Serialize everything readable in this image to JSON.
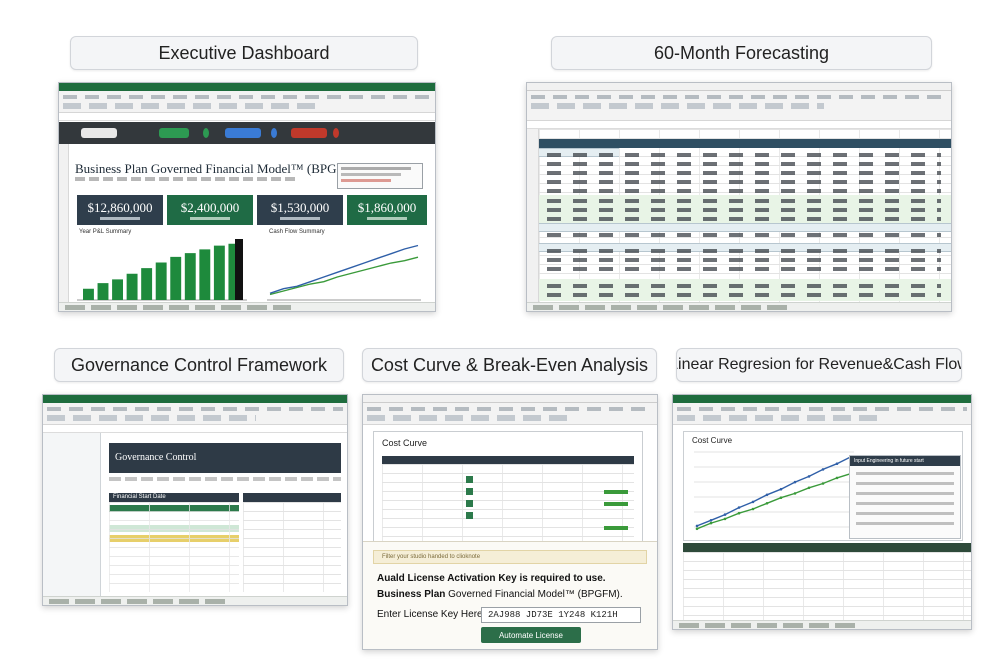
{
  "titles": {
    "exec": "Executive Dashboard",
    "forecast": "60-Month Forecasting",
    "governance": "Governance Control Framework",
    "costcurve": "Cost Curve & Break-Even Analysis",
    "regression": "Linear Regresion for Revenue&Cash Flow"
  },
  "exec": {
    "heading": "Business Plan Governed Financial Model™ (BPGFM)",
    "kpis": [
      "$12,860,000",
      "$2,400,000",
      "$1,530,000",
      "$1,860,000"
    ],
    "left_chart_label": "Year P&L Summary",
    "right_chart_label": "Cash Flow Summary",
    "left_bars": [
      12,
      18,
      22,
      28,
      34,
      40,
      46,
      50,
      54,
      58,
      60
    ],
    "right_series_a": [
      4,
      8,
      10,
      14,
      18,
      22,
      26,
      30,
      34,
      38,
      42,
      45
    ],
    "right_series_b": [
      3,
      6,
      9,
      12,
      14,
      18,
      21,
      24,
      27,
      30,
      32,
      35
    ]
  },
  "governance": {
    "heading": "Governance Control",
    "left_table_header": "Financial Start Date"
  },
  "costcurve": {
    "heading": "Cost Curve",
    "license_banner": "Filter your studio handed to clioknote",
    "license_line1": "Auald License Activation Key is required to use.",
    "license_line2_bold": "Business Plan",
    "license_line2_rest": " Governed Financial Model™ (BPGFM).",
    "key_label": "Enter License Key Here:",
    "key_value": "2AJ988 JD73E 1Y248 K121H",
    "activate_button": "Automate License"
  },
  "regression": {
    "heading": "Cost Curve",
    "legend_header": "Input Engineering in future start",
    "series_a": [
      5,
      9,
      13,
      18,
      22,
      27,
      31,
      36,
      40,
      45,
      49,
      54
    ],
    "series_b": [
      3,
      7,
      10,
      14,
      17,
      21,
      25,
      28,
      32,
      35,
      39,
      42
    ]
  },
  "colors": {
    "excel_green": "#1e6c3d",
    "kpi_dark": "#2f3e4c",
    "kpi_green": "#1f6b45",
    "bar_green": "#1e8a3c",
    "line_blue": "#2f5fa8",
    "line_green": "#3a9a3a"
  }
}
